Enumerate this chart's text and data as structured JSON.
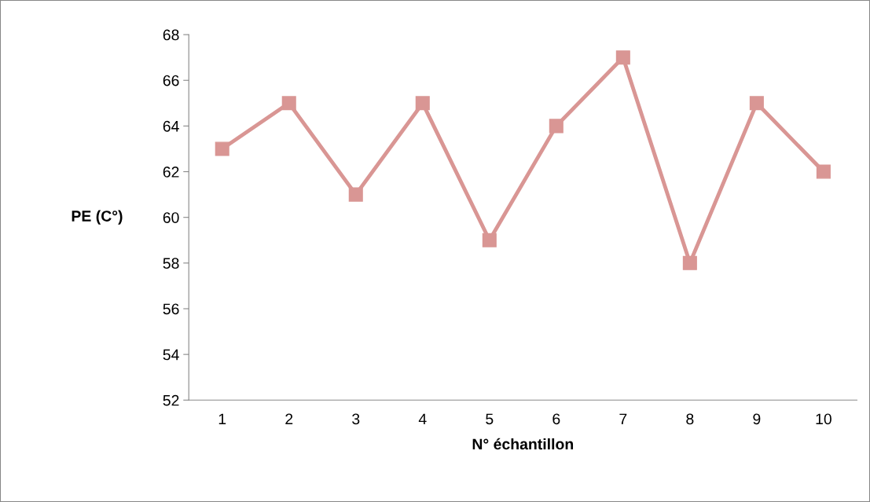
{
  "chart_data": {
    "type": "line",
    "categories": [
      "1",
      "2",
      "3",
      "4",
      "5",
      "6",
      "7",
      "8",
      "9",
      "10"
    ],
    "series": [
      {
        "color": "#d99694",
        "values": [
          63,
          65,
          61,
          65,
          59,
          64,
          67,
          58,
          65,
          62
        ]
      }
    ],
    "xlabel": "N° échantillon",
    "ylabel": "PE (C°)",
    "ylim": [
      52,
      68
    ],
    "yticks": [
      52,
      54,
      56,
      58,
      60,
      62,
      64,
      66,
      68
    ],
    "marker": "square",
    "line_style": "solid",
    "grid": false,
    "legend": false
  }
}
